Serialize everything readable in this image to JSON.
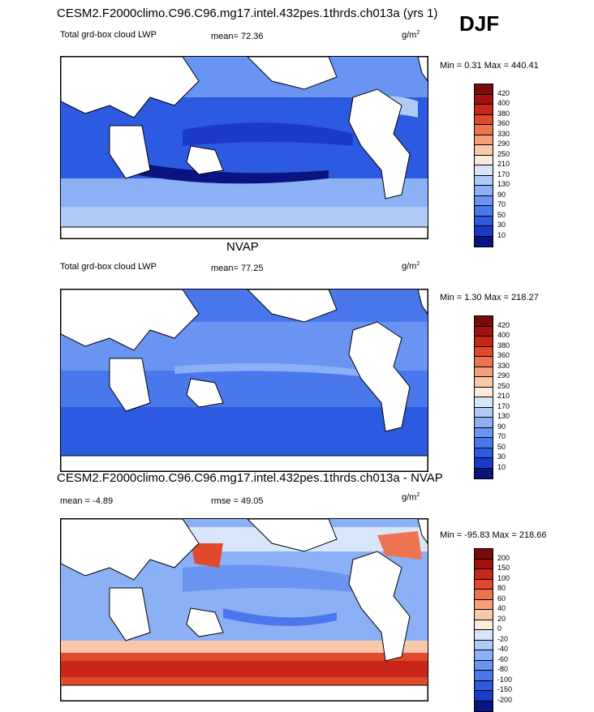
{
  "season": "DJF",
  "panels": [
    {
      "id": "model",
      "title": "CESM2.F2000climo.C96.C96.mg17.intel.432pes.1thrds.ch013a (yrs 1)",
      "left_label": "Total grd-box cloud LWP",
      "stat_label": "mean=  72.36",
      "units": "g/m",
      "units_exp": "2",
      "minmax": "Min =   0.31 Max = 440.41"
    },
    {
      "id": "obs",
      "title": "NVAP",
      "left_label": "Total grd-box cloud LWP",
      "stat_label": "mean=  77.25",
      "units": "g/m",
      "units_exp": "2",
      "minmax": "Min =   1.30 Max = 218.27"
    },
    {
      "id": "diff",
      "title": "CESM2.F2000climo.C96.C96.mg17.intel.432pes.1thrds.ch013a - NVAP",
      "left_label": "mean =  -4.89",
      "stat_label": "rmse =  49.05",
      "units": "g/m",
      "units_exp": "2",
      "minmax": "Min = -95.83 Max = 218.66"
    }
  ],
  "chart_data": [
    {
      "type": "heatmap",
      "title": "CESM2.F2000climo.C96.C96.mg17.intel.432pes.1thrds.ch013a (yrs 1)",
      "variable": "Total grd-box cloud LWP",
      "units": "g/m2",
      "mean": 72.36,
      "min": 0.31,
      "max": 440.41,
      "colorbar_levels": [
        10,
        30,
        50,
        70,
        90,
        130,
        170,
        210,
        250,
        290,
        330,
        360,
        380,
        400,
        420
      ]
    },
    {
      "type": "heatmap",
      "title": "NVAP",
      "variable": "Total grd-box cloud LWP",
      "units": "g/m2",
      "mean": 77.25,
      "min": 1.3,
      "max": 218.27,
      "colorbar_levels": [
        10,
        30,
        50,
        70,
        90,
        130,
        170,
        210,
        250,
        290,
        330,
        360,
        380,
        400,
        420
      ]
    },
    {
      "type": "heatmap",
      "title": "CESM2.F2000climo.C96.C96.mg17.intel.432pes.1thrds.ch013a - NVAP",
      "units": "g/m2",
      "mean": -4.89,
      "rmse": 49.05,
      "min": -95.83,
      "max": 218.66,
      "colorbar_levels": [
        -200,
        -150,
        -100,
        -80,
        -60,
        -40,
        -20,
        0,
        20,
        40,
        60,
        80,
        100,
        150,
        200
      ]
    }
  ],
  "colorbar_colors": [
    "#0a1480",
    "#1c3ac8",
    "#2c5ae0",
    "#4a78ec",
    "#6a94f2",
    "#8cb0f6",
    "#b0caf8",
    "#d8e6fa",
    "#fcebdc",
    "#f7c9aa",
    "#f2a07c",
    "#ec7450",
    "#e04a2c",
    "#c8261a",
    "#a01212",
    "#7a0a0a"
  ],
  "colors": {
    "land": "#ffffff",
    "ocean_low": "#1f3fc0",
    "ocean_mid": "#4a7ae6",
    "ocean_light": "#9cbcf4",
    "diff_pos": "#e8482a",
    "diff_neg": "#7aa0ee"
  }
}
